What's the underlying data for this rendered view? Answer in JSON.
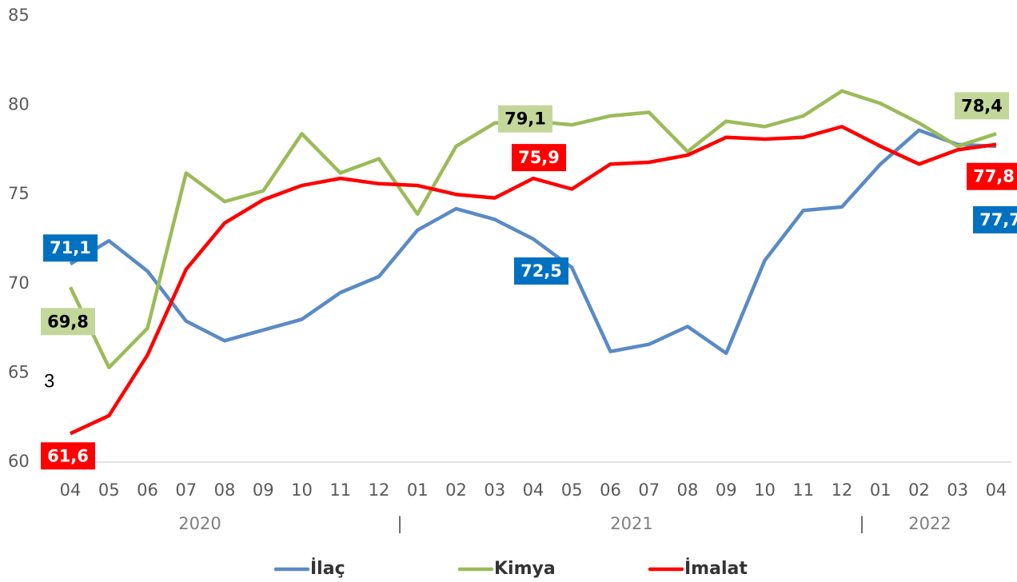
{
  "chart_data": {
    "type": "line",
    "categories": [
      "04",
      "05",
      "06",
      "07",
      "08",
      "09",
      "10",
      "11",
      "12",
      "01",
      "02",
      "03",
      "04",
      "05",
      "06",
      "07",
      "08",
      "09",
      "10",
      "11",
      "12",
      "01",
      "02",
      "03",
      "04"
    ],
    "year_labels": [
      "2020",
      "2021",
      "2022"
    ],
    "annotation": "3",
    "series": [
      {
        "name": "İlaç",
        "color": "#5a8ac6",
        "label_color": "#0070c0",
        "values": [
          71.1,
          72.4,
          70.7,
          67.9,
          66.8,
          67.4,
          68.0,
          69.5,
          70.4,
          73.0,
          74.2,
          73.6,
          72.5,
          70.9,
          66.2,
          66.6,
          67.6,
          66.1,
          71.3,
          74.1,
          74.3,
          76.7,
          78.6,
          77.8,
          77.7
        ],
        "value_labels": [
          "71,1",
          null,
          null,
          null,
          null,
          null,
          null,
          null,
          null,
          null,
          null,
          null,
          "72,5",
          null,
          null,
          null,
          null,
          null,
          null,
          null,
          null,
          null,
          null,
          null,
          "77,7"
        ]
      },
      {
        "name": "Kimya",
        "color": "#9bbb59",
        "label_color": "#c4d79b",
        "values": [
          69.8,
          65.3,
          67.5,
          76.2,
          74.6,
          75.2,
          78.4,
          76.2,
          77.0,
          73.9,
          77.7,
          79.0,
          79.1,
          78.9,
          79.4,
          79.6,
          77.4,
          79.1,
          78.8,
          79.4,
          80.8,
          80.1,
          79.0,
          77.7,
          78.4
        ],
        "value_labels": [
          "69,8",
          null,
          null,
          null,
          null,
          null,
          null,
          null,
          null,
          null,
          null,
          null,
          "79,1",
          null,
          null,
          null,
          null,
          null,
          null,
          null,
          null,
          null,
          null,
          null,
          "78,4"
        ]
      },
      {
        "name": "İmalat",
        "color": "#ff0000",
        "label_color": "#ff0000",
        "values": [
          61.6,
          62.6,
          66.0,
          70.8,
          73.4,
          74.7,
          75.5,
          75.9,
          75.6,
          75.5,
          75.0,
          74.8,
          75.9,
          75.3,
          76.7,
          76.8,
          77.2,
          78.2,
          78.1,
          78.2,
          78.8,
          77.7,
          76.7,
          77.5,
          77.8
        ],
        "value_labels": [
          "61,6",
          null,
          null,
          null,
          null,
          null,
          null,
          null,
          null,
          null,
          null,
          null,
          "75,9",
          null,
          null,
          null,
          null,
          null,
          null,
          null,
          null,
          null,
          null,
          null,
          "77,8"
        ]
      }
    ],
    "ylim": [
      60,
      85
    ],
    "yticks": [
      60,
      65,
      70,
      75,
      80,
      85
    ],
    "grid": false,
    "legend": "bottom"
  }
}
